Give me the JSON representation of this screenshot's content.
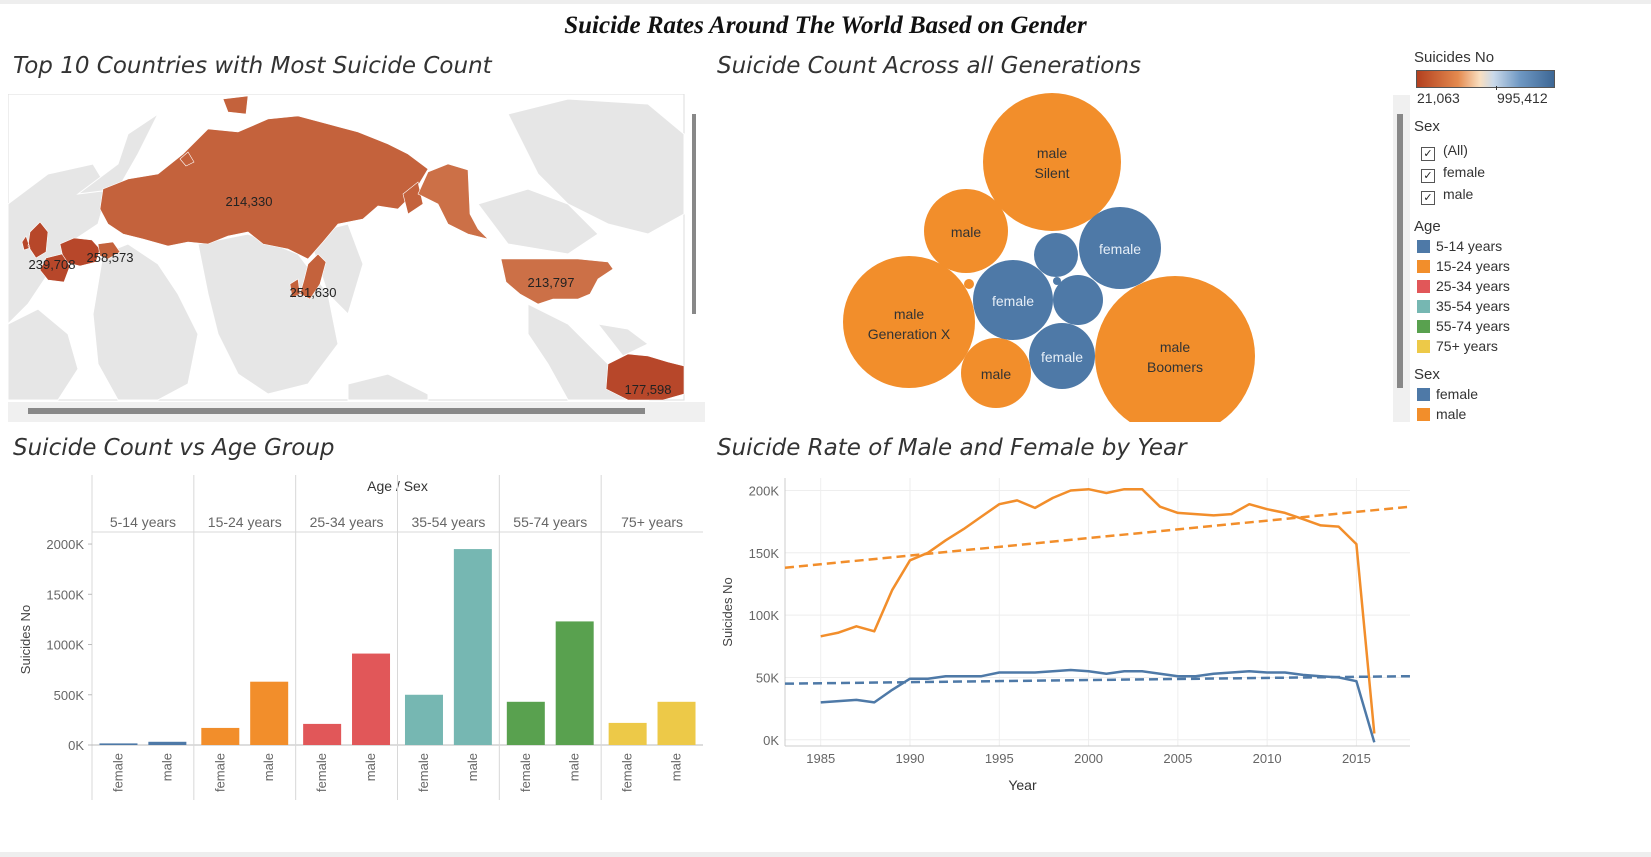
{
  "dashboard_title": "Suicide Rates Around The World Based on Gender",
  "sheets": {
    "map_title": "Top 10 Countries with Most Suicide Count",
    "bubble_title": "Suicide Count Across all Generations",
    "bar_title": "Suicide Count vs Age Group",
    "line_title": "Suicide Rate of Male and Female by Year"
  },
  "legend": {
    "color_title": "Suicides No",
    "color_min": "21,063",
    "color_max": "995,412",
    "sex_filter_title": "Sex",
    "sex_filter_items": [
      "(All)",
      "female",
      "male"
    ],
    "age_title": "Age",
    "age_items": [
      {
        "label": "5-14 years",
        "color": "#4e79a7"
      },
      {
        "label": "15-24 years",
        "color": "#f28e2b"
      },
      {
        "label": "25-34 years",
        "color": "#e15759"
      },
      {
        "label": "35-54 years",
        "color": "#76b7b2"
      },
      {
        "label": "55-74 years",
        "color": "#59a14f"
      },
      {
        "label": "75+ years",
        "color": "#edc948"
      }
    ],
    "sex_title": "Sex",
    "sex_items": [
      {
        "label": "female",
        "color": "#4e79a7"
      },
      {
        "label": "male",
        "color": "#f28e2b"
      }
    ]
  },
  "chart_data": [
    {
      "type": "map",
      "labels": [
        "214,330",
        "213,797",
        "239,708",
        "258,573",
        "251,630",
        "177,598"
      ],
      "colors": {
        "dark": "#b7472a",
        "mid": "#c4623c",
        "light": "#cc7047",
        "land": "#e6e6e6"
      }
    },
    {
      "type": "bubble",
      "bubbles": [
        {
          "sex": "male",
          "generation": "Silent",
          "color": "#f28e2b"
        },
        {
          "sex": "male",
          "generation": "",
          "color": "#f28e2b"
        },
        {
          "sex": "male",
          "generation": "Generation X",
          "color": "#f28e2b"
        },
        {
          "sex": "male",
          "generation": "",
          "color": "#f28e2b"
        },
        {
          "sex": "male",
          "generation": "Boomers",
          "color": "#f28e2b"
        },
        {
          "sex": "female",
          "generation": "",
          "color": "#4e79a7"
        },
        {
          "sex": "female",
          "generation": "",
          "color": "#4e79a7"
        },
        {
          "sex": "female",
          "generation": "",
          "color": "#4e79a7"
        },
        {
          "sex": "",
          "generation": "",
          "color": "#4e79a7"
        },
        {
          "sex": "",
          "generation": "",
          "color": "#4e79a7"
        },
        {
          "sex": "",
          "generation": "",
          "color": "#4e79a7"
        },
        {
          "sex": "",
          "generation": "",
          "color": "#f28e2b"
        }
      ]
    },
    {
      "type": "bar",
      "header": "Age / Sex",
      "ylabel": "Suicides No",
      "ylim": [
        0,
        2100000
      ],
      "yticks": [
        0,
        500000,
        1000000,
        1500000,
        2000000
      ],
      "ytick_labels": [
        "0K",
        "500K",
        "1000K",
        "1500K",
        "2000K"
      ],
      "groups": [
        {
          "age": "5-14 years",
          "color": "#4e79a7",
          "female": 16000,
          "male": 32000
        },
        {
          "age": "15-24 years",
          "color": "#f28e2b",
          "female": 170000,
          "male": 630000
        },
        {
          "age": "25-34 years",
          "color": "#e15759",
          "female": 210000,
          "male": 910000
        },
        {
          "age": "35-54 years",
          "color": "#76b7b2",
          "female": 500000,
          "male": 1950000
        },
        {
          "age": "55-74 years",
          "color": "#59a14f",
          "female": 430000,
          "male": 1230000
        },
        {
          "age": "75+ years",
          "color": "#edc948",
          "female": 220000,
          "male": 430000
        }
      ],
      "sex_labels": [
        "female",
        "male"
      ]
    },
    {
      "type": "line",
      "xlabel": "Year",
      "ylabel": "Suicides No",
      "xlim": [
        1983,
        2018
      ],
      "ylim": [
        -5000,
        210000
      ],
      "xticks": [
        1985,
        1990,
        1995,
        2000,
        2005,
        2010,
        2015
      ],
      "yticks": [
        0,
        50000,
        100000,
        150000,
        200000
      ],
      "ytick_labels": [
        "0K",
        "50K",
        "100K",
        "150K",
        "200K"
      ],
      "series": [
        {
          "name": "male",
          "color": "#f28e2b",
          "x": [
            1985,
            1986,
            1987,
            1988,
            1989,
            1990,
            1991,
            1992,
            1993,
            1994,
            1995,
            1996,
            1997,
            1998,
            1999,
            2000,
            2001,
            2002,
            2003,
            2004,
            2005,
            2006,
            2007,
            2008,
            2009,
            2010,
            2011,
            2012,
            2013,
            2014,
            2015,
            2016
          ],
          "y": [
            83000,
            86000,
            91000,
            87000,
            120000,
            144000,
            150000,
            160000,
            169000,
            179000,
            189000,
            192000,
            186000,
            194000,
            200000,
            201000,
            198000,
            201000,
            201000,
            187000,
            182000,
            181000,
            180000,
            181000,
            189000,
            185000,
            182000,
            177000,
            172000,
            171000,
            157000,
            5000
          ],
          "trend": [
            138000,
            187000
          ]
        },
        {
          "name": "female",
          "color": "#4e79a7",
          "x": [
            1985,
            1986,
            1987,
            1988,
            1989,
            1990,
            1991,
            1992,
            1993,
            1994,
            1995,
            1996,
            1997,
            1998,
            1999,
            2000,
            2001,
            2002,
            2003,
            2004,
            2005,
            2006,
            2007,
            2008,
            2009,
            2010,
            2011,
            2012,
            2013,
            2014,
            2015,
            2016
          ],
          "y": [
            30000,
            31000,
            32000,
            30000,
            40000,
            49000,
            49000,
            51000,
            51000,
            51000,
            54000,
            54000,
            54000,
            55000,
            56000,
            55000,
            53000,
            55000,
            55000,
            53000,
            51000,
            51000,
            53000,
            54000,
            55000,
            54000,
            54000,
            52000,
            51000,
            50000,
            47000,
            -2000
          ],
          "trend": [
            45000,
            51000
          ]
        }
      ]
    }
  ]
}
